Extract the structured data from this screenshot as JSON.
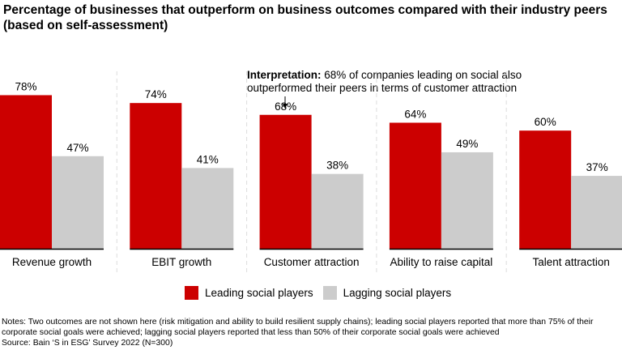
{
  "chart_data": {
    "type": "bar",
    "title": "Percentage of businesses that outperform on business outcomes compared with their industry peers (based on self-assessment)",
    "categories": [
      "Revenue growth",
      "EBIT growth",
      "Customer attraction",
      "Ability to raise capital",
      "Talent attraction"
    ],
    "series": [
      {
        "name": "Leading social players",
        "values": [
          78,
          74,
          68,
          64,
          60
        ],
        "color": "#CC0000"
      },
      {
        "name": "Lagging social players",
        "values": [
          47,
          41,
          38,
          49,
          37
        ],
        "color": "#CCCCCC"
      }
    ],
    "value_suffix": "%",
    "ylim": [
      0,
      100
    ],
    "grid": false,
    "legend_position": "bottom",
    "annotation": {
      "bold": "Interpretation:",
      "line1": "68% of companies leading on social also",
      "line2": "outperformed their peers in terms of customer attraction",
      "target_category": "Customer attraction"
    }
  },
  "notes": {
    "line1": "Notes: Two outcomes are not shown here (risk mitigation and ability to build resilient supply chains); leading social players reported that more than 75% of their",
    "line2": "corporate social goals were achieved; lagging social players reported that less than 50% of their corporate social goals were achieved",
    "source": "Source: Bain ‘S in ESG’ Survey 2022 (N=300)"
  }
}
